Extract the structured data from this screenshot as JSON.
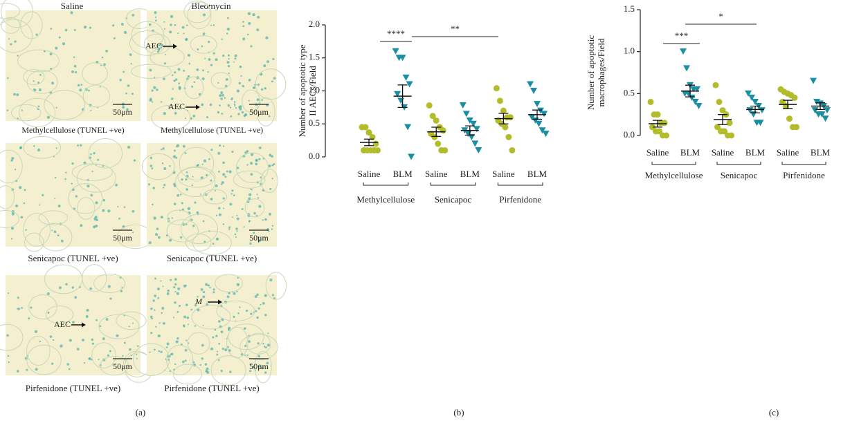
{
  "panel_labels": [
    "(a)",
    "(b)",
    "(c)"
  ],
  "panel_a": {
    "columns": [
      "Saline",
      "Bleomycin"
    ],
    "images": [
      {
        "caption": "Methylcellulose (TUNEL +ve)",
        "scale": "50μm",
        "labels": []
      },
      {
        "caption": "Methylcellulose (TUNEL +ve)",
        "scale": "50μm",
        "labels": [
          "AEC",
          "AEC"
        ]
      },
      {
        "caption": "Senicapoc (TUNEL +ve)",
        "scale": "50μm",
        "labels": []
      },
      {
        "caption": "Senicapoc (TUNEL +ve)",
        "scale": "50μm",
        "labels": []
      },
      {
        "caption": "Pirfenidone (TUNEL +ve)",
        "scale": "50μm",
        "labels": [
          "AEC"
        ]
      },
      {
        "caption": "Pirfenidone (TUNEL +ve)",
        "scale": "50μm",
        "labels": [
          "M"
        ]
      }
    ]
  },
  "chart_data": [
    {
      "type": "dotplot",
      "ylabel": [
        "Number of apoptotic type",
        "II AECs/Field"
      ],
      "categories": [
        "Saline",
        "BLM",
        "Saline",
        "BLM",
        "Saline",
        "BLM"
      ],
      "treatments": [
        "Methylcellulose",
        "Senicapoc",
        "Pirfenidone"
      ],
      "colors": [
        "#b3bd2b",
        "#1a8ea3",
        "#b3bd2b",
        "#1a8ea3",
        "#b3bd2b",
        "#1a8ea3"
      ],
      "markers": [
        "circle",
        "triangle",
        "circle",
        "triangle",
        "circle",
        "triangle"
      ],
      "values": [
        [
          0.45,
          0.45,
          0.37,
          0.3,
          0.2,
          0.1,
          0.1,
          0.1,
          0.1,
          0.1
        ],
        [
          1.6,
          1.5,
          1.5,
          1.2,
          1.1,
          0.95,
          0.85,
          0.75,
          0.45,
          0.0
        ],
        [
          0.78,
          0.62,
          0.55,
          0.45,
          0.4,
          0.35,
          0.3,
          0.2,
          0.1,
          0.1
        ],
        [
          0.78,
          0.65,
          0.55,
          0.5,
          0.42,
          0.4,
          0.35,
          0.3,
          0.2,
          0.1
        ],
        [
          1.04,
          0.85,
          0.7,
          0.6,
          0.6,
          0.55,
          0.5,
          0.45,
          0.3,
          0.1
        ],
        [
          1.1,
          1.0,
          0.8,
          0.7,
          0.65,
          0.6,
          0.55,
          0.5,
          0.4,
          0.35
        ]
      ],
      "mean": [
        0.22,
        0.92,
        0.38,
        0.4,
        0.58,
        0.64
      ],
      "sem": [
        0.05,
        0.17,
        0.07,
        0.07,
        0.08,
        0.07
      ],
      "annotations": [
        "****",
        "**"
      ],
      "ylim": [
        0,
        2
      ],
      "yticks": [
        {
          "value": 0,
          "label": "0.0"
        },
        0.5,
        {
          "value": 1,
          "label": "1.0"
        },
        1.5,
        {
          "value": 2,
          "label": "2.0"
        }
      ]
    },
    {
      "type": "dotplot",
      "ylabel": [
        "Number of apoptotic",
        "macrophages/Field"
      ],
      "categories": [
        "Saline",
        "BLM",
        "Saline",
        "BLM",
        "Saline",
        "BLM"
      ],
      "treatments": [
        "Methylcellulose",
        "Senicapoc",
        "Pirfenidone"
      ],
      "colors": [
        "#b3bd2b",
        "#1a8ea3",
        "#b3bd2b",
        "#1a8ea3",
        "#b3bd2b",
        "#1a8ea3"
      ],
      "markers": [
        "circle",
        "triangle",
        "circle",
        "triangle",
        "circle",
        "triangle"
      ],
      "values": [
        [
          0.4,
          0.25,
          0.25,
          0.15,
          0.15,
          0.1,
          0.05,
          0.05,
          0.0,
          0.0
        ],
        [
          1.0,
          0.8,
          0.6,
          0.55,
          0.55,
          0.5,
          0.5,
          0.45,
          0.4,
          0.35
        ],
        [
          0.6,
          0.4,
          0.3,
          0.25,
          0.15,
          0.1,
          0.05,
          0.05,
          0.0,
          0.0
        ],
        [
          0.5,
          0.45,
          0.4,
          0.35,
          0.3,
          0.3,
          0.25,
          0.15,
          0.15
        ],
        [
          0.55,
          0.52,
          0.5,
          0.48,
          0.45,
          0.4,
          0.35,
          0.2,
          0.1,
          0.1
        ],
        [
          0.65,
          0.4,
          0.38,
          0.35,
          0.3,
          0.3,
          0.25,
          0.25,
          0.2
        ]
      ],
      "mean": [
        0.14,
        0.53,
        0.19,
        0.31,
        0.37,
        0.35
      ],
      "sem": [
        0.04,
        0.07,
        0.06,
        0.04,
        0.05,
        0.04
      ],
      "annotations": [
        "***",
        "*"
      ],
      "ylim": [
        0,
        1.5
      ],
      "yticks": [
        {
          "value": 0,
          "label": "0.0"
        },
        0.5,
        {
          "value": 1,
          "label": "1.0"
        },
        1.5
      ]
    }
  ]
}
